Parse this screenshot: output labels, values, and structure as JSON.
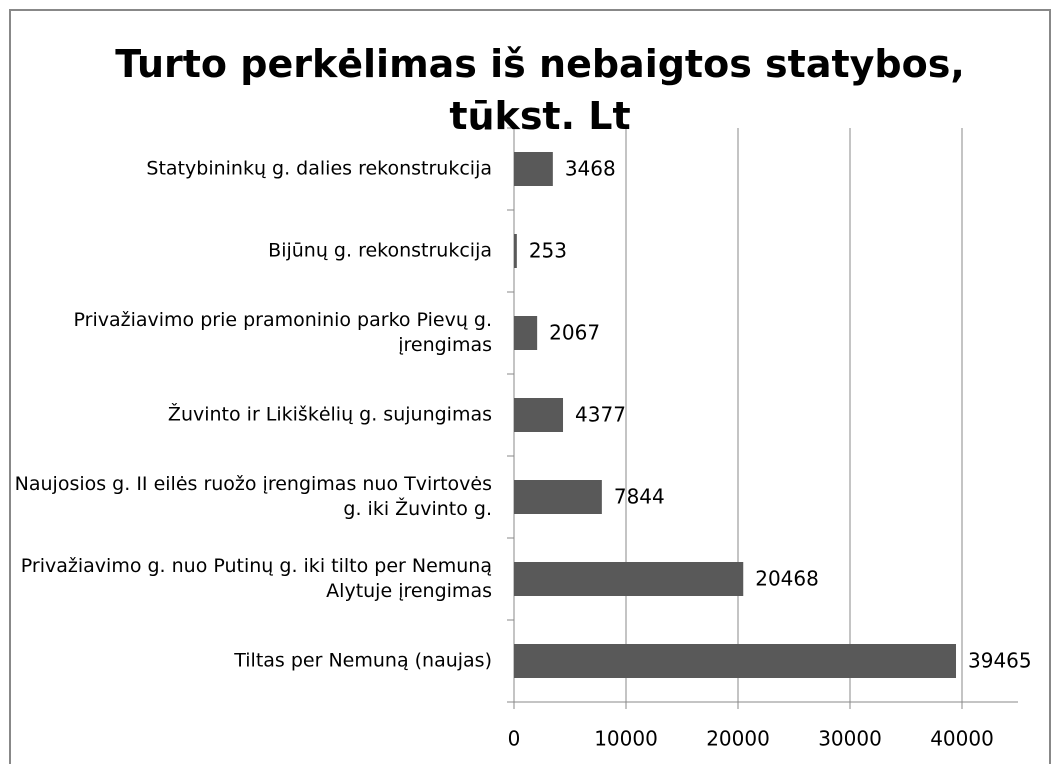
{
  "chart_data": {
    "type": "hbar",
    "title": "Turto perkėlimas iš nebaigtos statybos, tūkst. Lt",
    "categories": [
      "Statybininkų g. dalies rekonstrukcija",
      "Bijūnų g. rekonstrukcija",
      "Privažiavimo prie pramoninio parko Pievų g. įrengimas",
      "Žuvinto ir Likiškėlių g. sujungimas",
      "Naujosios g. II eilės ruožo įrengimas nuo Tvirtovės g. iki Žuvinto g.",
      "Privažiavimo g. nuo Putinų g. iki tilto per Nemuną Alytuje įrengimas",
      "Tiltas per Nemuną (naujas)"
    ],
    "values": [
      3468,
      253,
      2067,
      4377,
      7844,
      20468,
      39465
    ],
    "color": "#595959",
    "xlim": [
      0,
      45000
    ],
    "xticks": [
      0,
      10000,
      20000,
      30000,
      40000
    ],
    "grid": true
  }
}
